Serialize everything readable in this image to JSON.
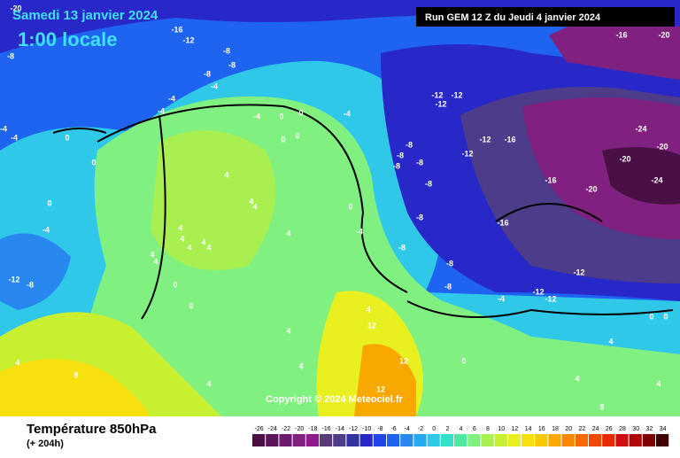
{
  "header": {
    "date": "Samedi 13 janvier 2024",
    "time": "1:00 locale",
    "run": "Run GEM 12 Z du Jeudi 4 janvier 2024"
  },
  "copyright": "Copyright © 2024 Meteociel.fr",
  "footer": {
    "title": "Température 850hPa",
    "lead": "(+ 204h)"
  },
  "scale": {
    "values": [
      -26,
      -24,
      -22,
      -20,
      -18,
      -16,
      -14,
      -12,
      -10,
      -8,
      -6,
      -4,
      -2,
      0,
      2,
      4,
      6,
      8,
      10,
      12,
      14,
      16,
      18,
      20,
      22,
      24,
      26,
      28,
      30,
      32,
      34
    ],
    "colors": [
      "#4a1046",
      "#5c1458",
      "#6e1a6e",
      "#80207f",
      "#921a90",
      "#5a3a78",
      "#4c3c8a",
      "#3232a0",
      "#2828c8",
      "#1e46e6",
      "#1e64f0",
      "#2888f0",
      "#28a8f0",
      "#30c8e8",
      "#30e0c8",
      "#50e8a0",
      "#80f080",
      "#a8f050",
      "#c8f030",
      "#e8f020",
      "#f8e010",
      "#f8c800",
      "#f8a800",
      "#f88800",
      "#f86800",
      "#f04800",
      "#e82800",
      "#d01010",
      "#b00808",
      "#800000",
      "#400000"
    ]
  },
  "map_labels": [
    -20,
    -16,
    -12,
    -8,
    -8,
    -8,
    -8,
    -4,
    -4,
    -4,
    -4,
    0,
    0,
    -4,
    -4,
    -4,
    0,
    0,
    0,
    0,
    4,
    4,
    4,
    0,
    -4,
    4,
    4,
    4,
    4,
    4,
    4,
    4,
    4,
    0,
    0,
    -12,
    -8,
    4,
    4,
    4,
    8,
    4,
    4,
    12,
    12,
    12,
    -16,
    -20,
    -12,
    -12,
    -12,
    -12,
    -16,
    -8,
    -12,
    -8,
    -8,
    -8,
    -24,
    -20,
    -20,
    -16,
    -20,
    -24,
    -8,
    0,
    -16,
    -8,
    -4,
    -8,
    -8,
    -12,
    -8,
    -12,
    -12,
    -4,
    0,
    0,
    4,
    0,
    4,
    8,
    4
  ]
}
